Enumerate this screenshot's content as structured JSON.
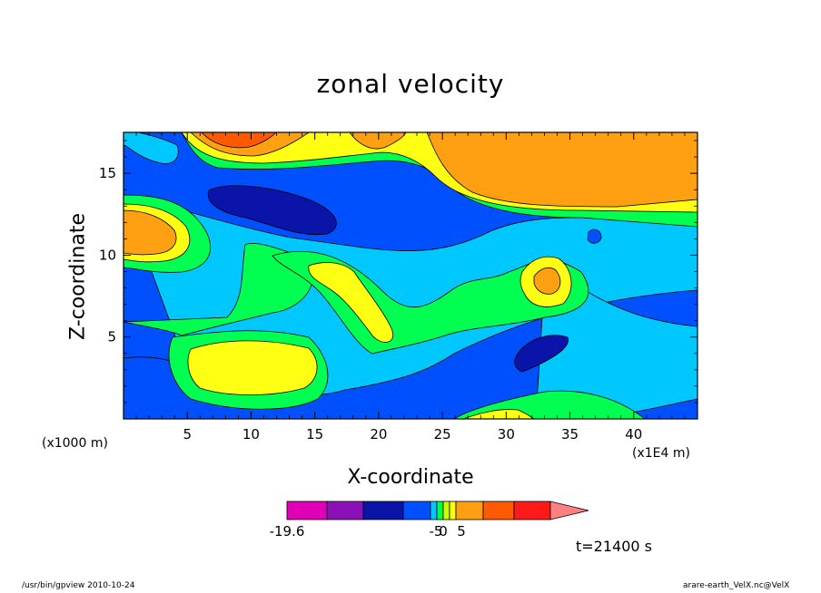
{
  "chart_data": {
    "type": "heatmap",
    "title": "zonal velocity",
    "xlabel": "X-coordinate",
    "ylabel": "Z-coordinate",
    "x_unit_label": "(x1000 m)",
    "x_unit_label_right": "(x1E4 m)",
    "x_ticks": [
      5,
      10,
      15,
      20,
      25,
      30,
      35,
      40
    ],
    "y_ticks": [
      5,
      10,
      15
    ],
    "xlim": [
      0,
      45
    ],
    "ylim": [
      0,
      17.5
    ],
    "colorbar": {
      "tick_labels": [
        "-19.6",
        "-5",
        "0",
        "5"
      ],
      "colors": [
        "#e000b8",
        "#8b10b8",
        "#0a14a8",
        "#0050ff",
        "#00c8ff",
        "#00ff50",
        "#c8ff00",
        "#ffff14",
        "#ffa012",
        "#ff5a00",
        "#ff1a1a",
        "#ff8080"
      ],
      "extend": "max"
    },
    "time_label": "t=21400 s"
  },
  "footer": {
    "left": "/usr/bin/gpview   2010-10-24",
    "right": "arare-earth_VelX.nc@VelX"
  }
}
